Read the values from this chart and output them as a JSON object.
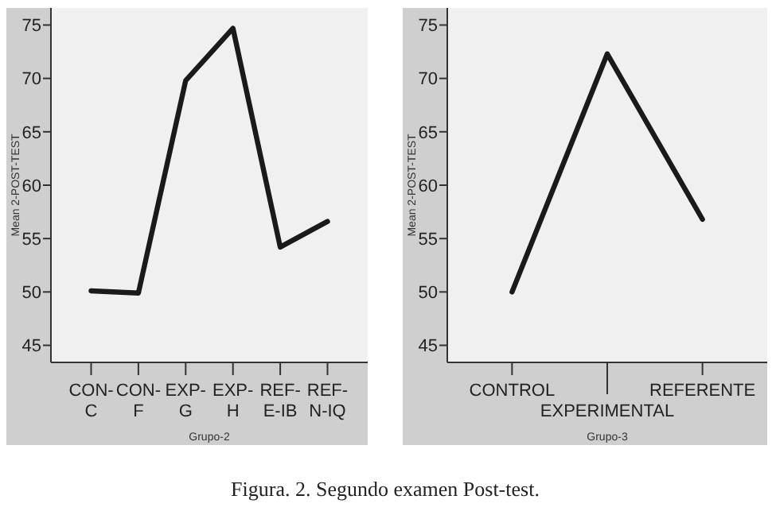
{
  "chart_data": [
    {
      "type": "line",
      "xlabel": "Grupo-2",
      "ylabel": "Mean 2-POST-TEST",
      "categories": [
        "CON-C",
        "CON-F",
        "EXP-G",
        "EXP-H",
        "REF-E-IB",
        "REF-N-IQ"
      ],
      "series": [
        {
          "color": "#1a1a1a",
          "values": [
            50.1,
            49.9,
            69.8,
            74.7,
            54.2,
            56.6
          ]
        }
      ],
      "ylim": [
        43.4,
        76.6
      ],
      "yticks": [
        45,
        50,
        55,
        60,
        65,
        70,
        75
      ],
      "grid": false,
      "marker": "none",
      "line_style": "solid",
      "annotations": [
        "Figura. 2. Segundo examen Post-test."
      ]
    },
    {
      "type": "line",
      "xlabel": "Grupo-3",
      "ylabel": "Mean 2-POST-TEST",
      "categories": [
        "CONTROL",
        "EXPERIMENTAL",
        "REFERENTE"
      ],
      "series": [
        {
          "color": "#1a1a1a",
          "values": [
            50.0,
            72.3,
            56.8
          ]
        }
      ],
      "ylim": [
        43.4,
        76.6
      ],
      "yticks": [
        45,
        50,
        55,
        60,
        65,
        70,
        75
      ],
      "grid": false,
      "marker": "none",
      "line_style": "solid"
    }
  ]
}
